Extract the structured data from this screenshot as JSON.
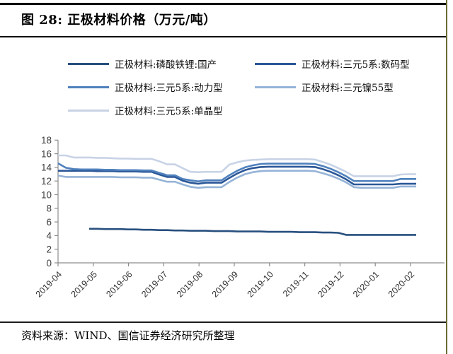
{
  "figure": {
    "title": "图 28: 正极材料价格（万元/吨）",
    "source": "资料来源：WIND、国信证券经济研究所整理"
  },
  "colors": {
    "title_rule": "#000000",
    "page_border_right": "#6F6B35",
    "axis": "#8C8C8C",
    "tick_text": "#3d3d3d"
  },
  "chart_data": {
    "type": "line",
    "title": "正极材料价格（万元/吨）",
    "xlabel": "",
    "ylabel": "",
    "ylim": [
      0,
      18
    ],
    "yticks": [
      0,
      2,
      4,
      6,
      8,
      10,
      12,
      14,
      16,
      18
    ],
    "grid": false,
    "legend_position": "top",
    "x_unit": "weekly observations, 2019-04 through 2020-02",
    "x_tick_labels": [
      "2019-04",
      "2019-05",
      "2019-06",
      "2019-07",
      "2019-08",
      "2019-09",
      "2019-10",
      "2019-11",
      "2019-12",
      "2020-01",
      "2020-02"
    ],
    "series": [
      {
        "name": "正极材料:磷酸铁锂:国产",
        "color": "#274F7E",
        "values": [
          null,
          null,
          null,
          null,
          5.0,
          5.0,
          4.95,
          4.95,
          4.95,
          4.9,
          4.9,
          4.85,
          4.85,
          4.8,
          4.8,
          4.75,
          4.75,
          4.7,
          4.7,
          4.7,
          4.65,
          4.65,
          4.65,
          4.6,
          4.6,
          4.6,
          4.6,
          4.55,
          4.55,
          4.55,
          4.55,
          4.5,
          4.5,
          4.5,
          4.45,
          4.45,
          4.4,
          4.1,
          4.1,
          4.1,
          4.1,
          4.1,
          4.1,
          4.1,
          4.1,
          4.1,
          4.1
        ]
      },
      {
        "name": "正极材料:三元5系:数码型",
        "color": "#2B5797",
        "values": [
          13.5,
          13.5,
          13.5,
          13.5,
          13.5,
          13.45,
          13.45,
          13.45,
          13.4,
          13.4,
          13.4,
          13.35,
          13.35,
          12.95,
          12.6,
          12.6,
          12.05,
          11.75,
          11.6,
          11.75,
          11.75,
          11.75,
          12.45,
          13.1,
          13.6,
          13.9,
          14.05,
          14.1,
          14.1,
          14.1,
          14.1,
          14.1,
          14.1,
          14.05,
          13.75,
          13.35,
          12.85,
          12.25,
          11.5,
          11.5,
          11.5,
          11.5,
          11.5,
          11.5,
          11.6,
          11.6,
          11.6
        ]
      },
      {
        "name": "正极材料:三元5系:动力型",
        "color": "#4F81BD",
        "values": [
          14.6,
          13.95,
          13.75,
          13.7,
          13.7,
          13.7,
          13.65,
          13.65,
          13.6,
          13.6,
          13.6,
          13.55,
          13.55,
          13.2,
          12.85,
          12.85,
          12.3,
          12.1,
          11.95,
          12.1,
          12.1,
          12.1,
          12.85,
          13.5,
          14.0,
          14.3,
          14.5,
          14.55,
          14.55,
          14.55,
          14.55,
          14.55,
          14.55,
          14.5,
          14.2,
          13.8,
          13.3,
          12.7,
          12.0,
          12.0,
          12.0,
          12.0,
          12.0,
          12.0,
          12.3,
          12.3,
          12.3
        ]
      },
      {
        "name": "正极材料:三元镍55型",
        "color": "#95B3D7",
        "values": [
          12.8,
          12.6,
          12.6,
          12.6,
          12.6,
          12.6,
          12.6,
          12.6,
          12.55,
          12.55,
          12.55,
          12.5,
          12.5,
          12.2,
          11.9,
          11.9,
          11.5,
          11.15,
          11.0,
          11.1,
          11.1,
          11.1,
          11.85,
          12.5,
          13.0,
          13.3,
          13.45,
          13.5,
          13.5,
          13.5,
          13.5,
          13.5,
          13.5,
          13.45,
          13.15,
          12.8,
          12.35,
          11.8,
          11.1,
          11.0,
          11.0,
          11.0,
          11.0,
          11.0,
          11.2,
          11.2,
          11.2
        ]
      },
      {
        "name": "正极材料:三元5系:单晶型",
        "color": "#C8D3E6",
        "values": [
          15.75,
          15.75,
          15.45,
          15.45,
          15.45,
          15.4,
          15.4,
          15.35,
          15.3,
          15.3,
          15.25,
          15.25,
          15.25,
          14.9,
          14.45,
          14.45,
          13.9,
          13.35,
          13.3,
          13.35,
          13.35,
          13.35,
          14.4,
          14.75,
          15.0,
          15.1,
          15.15,
          15.2,
          15.2,
          15.2,
          15.2,
          15.2,
          15.2,
          15.15,
          14.8,
          14.4,
          13.9,
          13.35,
          12.7,
          12.7,
          12.7,
          12.7,
          12.7,
          12.7,
          12.95,
          13.0,
          13.0
        ]
      }
    ]
  }
}
